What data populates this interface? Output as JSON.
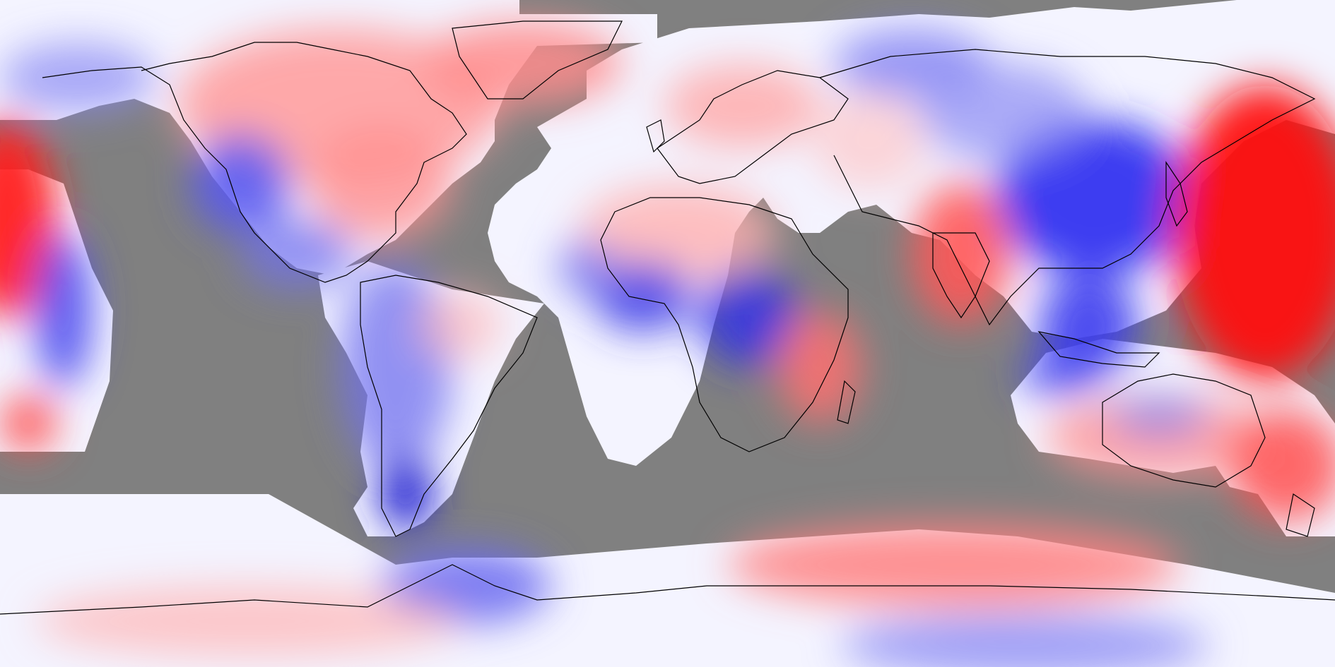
{
  "map": {
    "type": "global-anomaly-map",
    "projection": "equirectangular",
    "lon_range": [
      -180,
      180
    ],
    "lat_range": [
      -90,
      90
    ],
    "colors": {
      "no_data": "#808080",
      "neutral": "#f8f8ff",
      "strong_negative": "#0000e6",
      "strong_positive": "#ff1010",
      "coastline": "#000000"
    },
    "legend": "none",
    "text_labels": "none"
  }
}
